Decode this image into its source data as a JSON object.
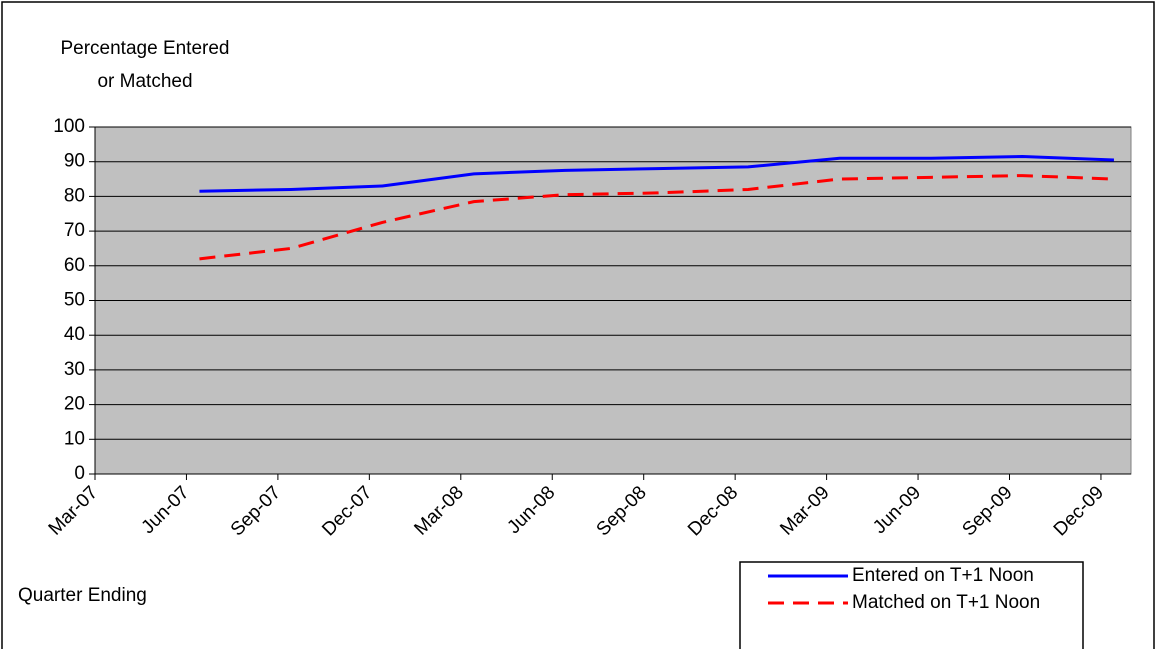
{
  "chart_data": {
    "type": "line",
    "y_label": [
      "Percentage Entered",
      "or Matched"
    ],
    "x_label": "Quarter Ending",
    "categories": [
      "Mar-07",
      "Jun-07",
      "Sep-07",
      "Dec-07",
      "Mar-08",
      "Jun-08",
      "Sep-08",
      "Dec-08",
      "Mar-09",
      "Jun-09",
      "Sep-09",
      "Dec-09"
    ],
    "series": [
      {
        "name": "Entered on T+1 Noon",
        "color": "#0000ff",
        "dashed": false,
        "values": [
          null,
          81.5,
          82,
          83,
          86.5,
          87.5,
          88,
          88.5,
          91,
          91,
          91.5,
          90.5
        ]
      },
      {
        "name": "Matched on T+1 Noon",
        "color": "#ff0000",
        "dashed": true,
        "values": [
          null,
          62,
          65,
          72.5,
          78.5,
          80.5,
          81,
          82,
          85,
          85.5,
          86,
          85
        ]
      }
    ],
    "ylim": [
      0,
      100
    ],
    "yticks": [
      0,
      10,
      20,
      30,
      40,
      50,
      60,
      70,
      80,
      90,
      100
    ],
    "grid": true,
    "plot_background": "#c0c0c0",
    "legend": "bottom-right"
  }
}
